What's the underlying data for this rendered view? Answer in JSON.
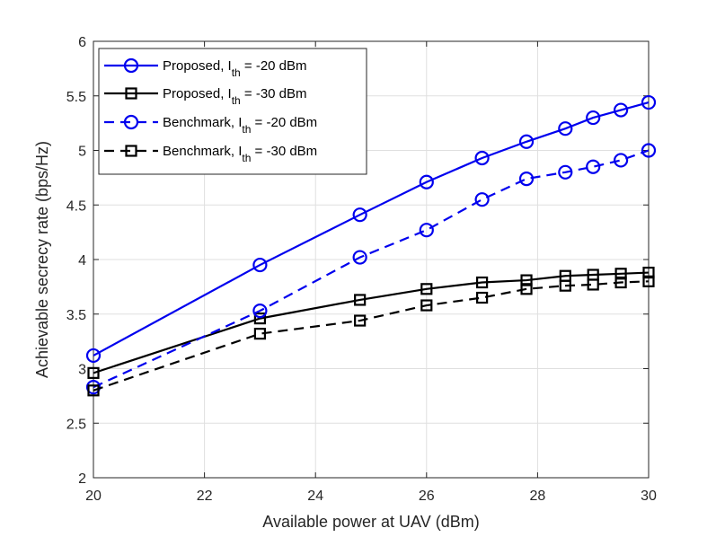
{
  "chart_data": {
    "type": "line",
    "title": "",
    "xlabel": "Available power at UAV (dBm)",
    "ylabel": "Achievable secrecy rate (bps/Hz)",
    "xlim": [
      20,
      30
    ],
    "ylim": [
      2,
      6
    ],
    "xticks": [
      20,
      22,
      24,
      26,
      28,
      30
    ],
    "yticks": [
      2,
      2.5,
      3,
      3.5,
      4,
      4.5,
      5,
      5.5,
      6
    ],
    "xtick_labels": [
      "20",
      "22",
      "24",
      "26",
      "28",
      "30"
    ],
    "ytick_labels": [
      "2",
      "2.5",
      "3",
      "3.5",
      "4",
      "4.5",
      "5",
      "5.5",
      "6"
    ],
    "grid": true,
    "legend_position": "top-left",
    "series": [
      {
        "name": "Proposed, I_th = -20 dBm",
        "label_main": "Proposed, I",
        "label_sub": "th",
        "label_tail": " = -20 dBm",
        "color": "#0000ee",
        "line_style": "solid",
        "marker": "circle",
        "x": [
          20,
          23,
          24.8,
          26,
          27,
          27.8,
          28.5,
          29,
          29.5,
          30
        ],
        "y": [
          3.12,
          3.95,
          4.41,
          4.71,
          4.93,
          5.08,
          5.2,
          5.3,
          5.37,
          5.44
        ]
      },
      {
        "name": "Proposed, I_th = -30 dBm",
        "label_main": "Proposed, I",
        "label_sub": "th",
        "label_tail": " = -30 dBm",
        "color": "#000000",
        "line_style": "solid",
        "marker": "square",
        "x": [
          20,
          23,
          24.8,
          26,
          27,
          27.8,
          28.5,
          29,
          29.5,
          30
        ],
        "y": [
          2.96,
          3.46,
          3.63,
          3.73,
          3.79,
          3.81,
          3.85,
          3.86,
          3.87,
          3.88
        ]
      },
      {
        "name": "Benchmark, I_th = -20 dBm",
        "label_main": "Benchmark, I",
        "label_sub": "th",
        "label_tail": " = -20 dBm",
        "color": "#0000ee",
        "line_style": "dashed",
        "marker": "circle",
        "x": [
          20,
          23,
          24.8,
          26,
          27,
          27.8,
          28.5,
          29,
          29.5,
          30
        ],
        "y": [
          2.83,
          3.53,
          4.02,
          4.27,
          4.55,
          4.74,
          4.8,
          4.85,
          4.91,
          5.0
        ]
      },
      {
        "name": "Benchmark, I_th = -30 dBm",
        "label_main": "Benchmark, I",
        "label_sub": "th",
        "label_tail": " = -30 dBm",
        "color": "#000000",
        "line_style": "dashed",
        "marker": "square",
        "x": [
          20,
          23,
          24.8,
          26,
          27,
          27.8,
          28.5,
          29,
          29.5,
          30
        ],
        "y": [
          2.8,
          3.32,
          3.44,
          3.58,
          3.65,
          3.73,
          3.76,
          3.77,
          3.79,
          3.8
        ]
      }
    ]
  }
}
